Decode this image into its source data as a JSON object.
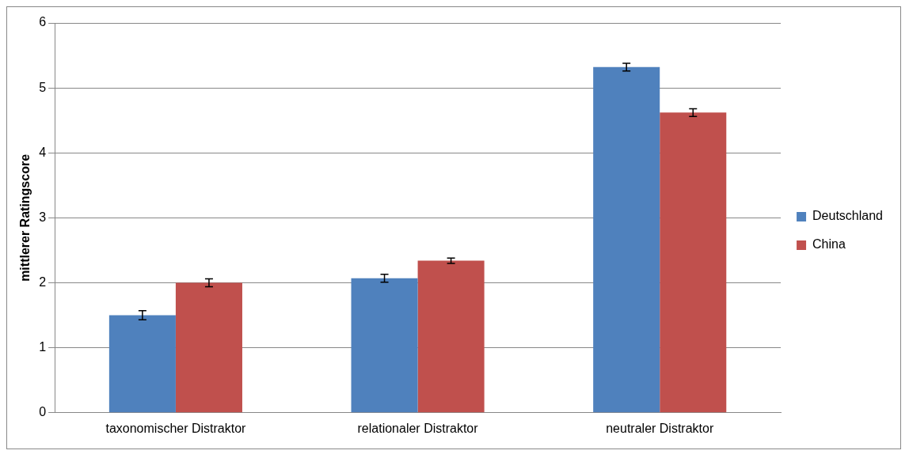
{
  "chart_data": {
    "type": "bar",
    "ylabel": "mittlerer Ratingscore",
    "categories": [
      "taxonomischer Distraktor",
      "relationaler Distraktor",
      "neutraler Distraktor"
    ],
    "series": [
      {
        "name": "Deutschland",
        "color": "#4f81bd",
        "values": [
          1.5,
          2.07,
          5.32
        ],
        "errors": [
          0.07,
          0.06,
          0.06
        ]
      },
      {
        "name": "China",
        "color": "#c0504d",
        "values": [
          2.0,
          2.34,
          4.62
        ],
        "errors": [
          0.06,
          0.04,
          0.06
        ]
      }
    ],
    "ylim": [
      0,
      6
    ],
    "yticks": [
      0,
      1,
      2,
      3,
      4,
      5,
      6
    ],
    "grid": "y",
    "legend": "right"
  }
}
